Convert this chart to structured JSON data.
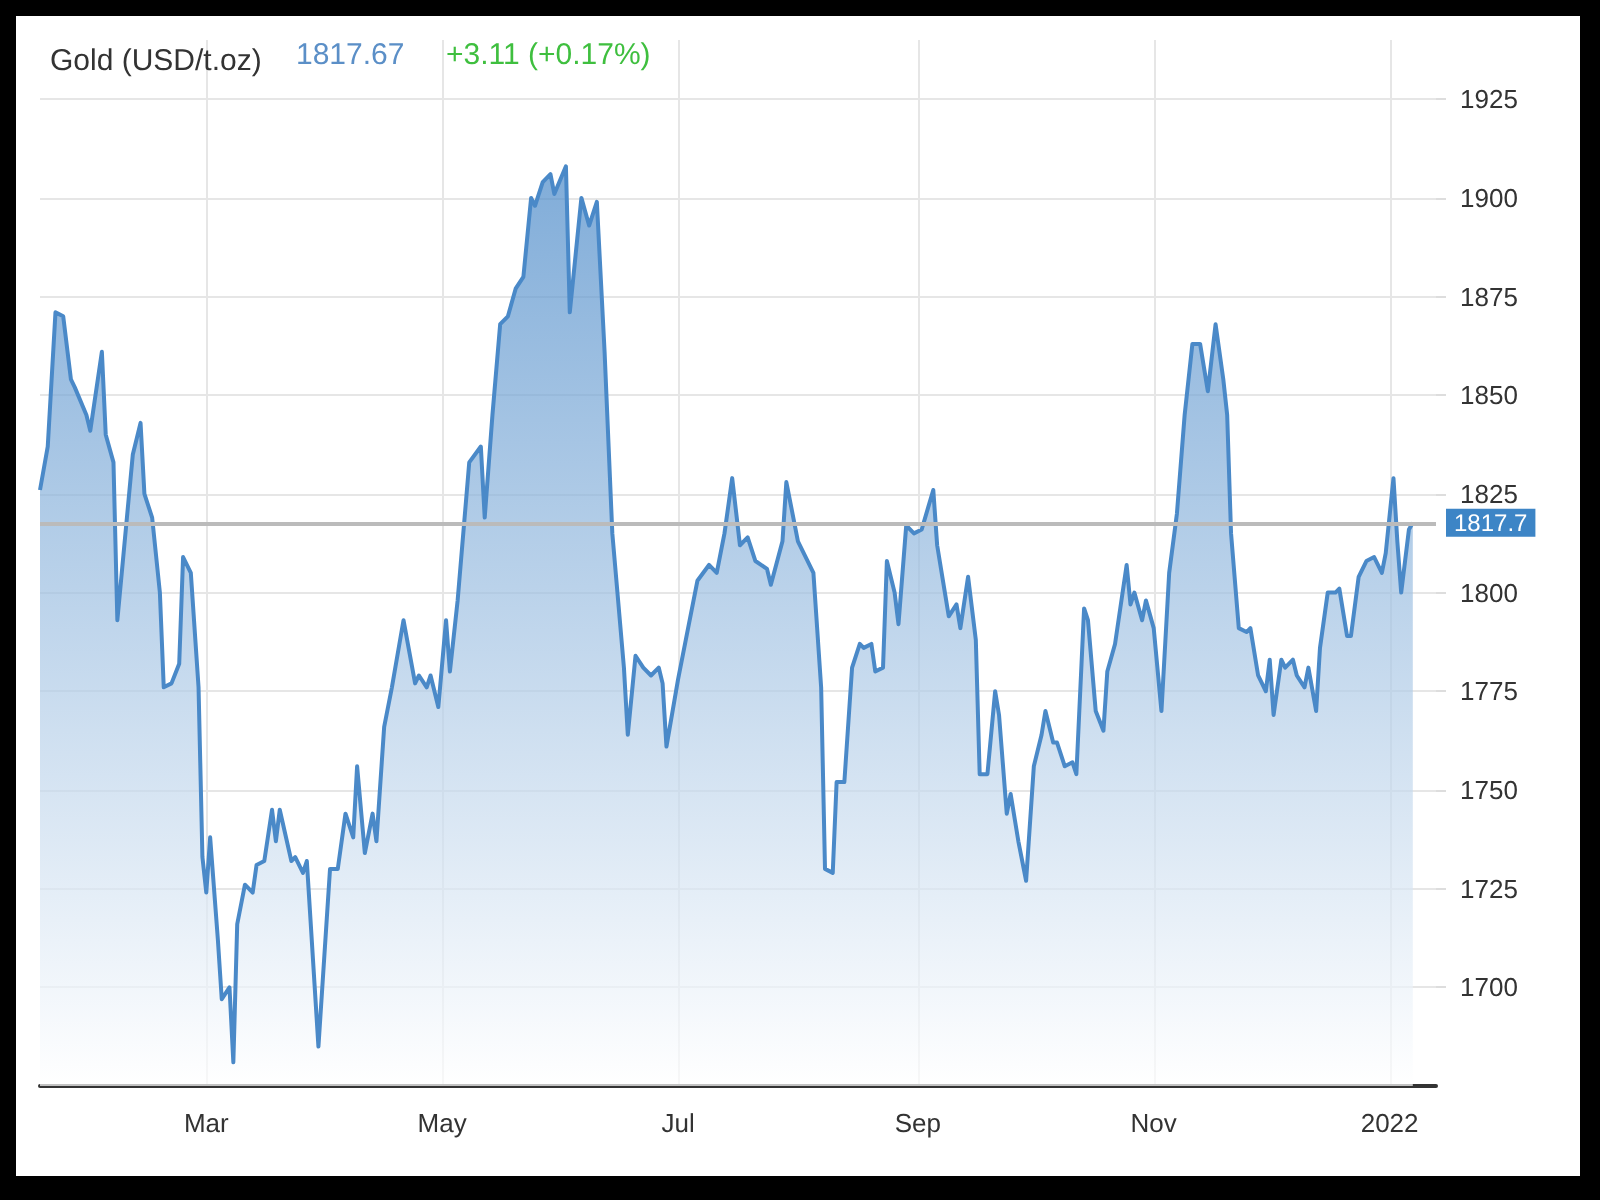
{
  "chart_data": {
    "type": "area",
    "title": "Gold (USD/t.oz)",
    "annotations": [
      "1817.67",
      "+3.11 (+0.17%)"
    ],
    "x": [
      "2021-01-17",
      "2021-01-19",
      "2021-01-21",
      "2021-01-23",
      "2021-01-25",
      "2021-01-26",
      "2021-01-29",
      "2021-01-30",
      "2021-02-02",
      "2021-02-03",
      "2021-02-05",
      "2021-02-06",
      "2021-02-10",
      "2021-02-12",
      "2021-02-13",
      "2021-02-15",
      "2021-02-17",
      "2021-02-18",
      "2021-02-20",
      "2021-02-22",
      "2021-02-23",
      "2021-02-25",
      "2021-02-27",
      "2021-02-28",
      "2021-03-01",
      "2021-03-02",
      "2021-03-04",
      "2021-03-05",
      "2021-03-07",
      "2021-03-08",
      "2021-03-09",
      "2021-03-11",
      "2021-03-13",
      "2021-03-14",
      "2021-03-16",
      "2021-03-18",
      "2021-03-19",
      "2021-03-20",
      "2021-03-23",
      "2021-03-24",
      "2021-03-26",
      "2021-03-27",
      "2021-03-30",
      "2021-04-02",
      "2021-04-04",
      "2021-04-06",
      "2021-04-08",
      "2021-04-09",
      "2021-04-11",
      "2021-04-13",
      "2021-04-14",
      "2021-04-16",
      "2021-04-18",
      "2021-04-21",
      "2021-04-24",
      "2021-04-25",
      "2021-04-27",
      "2021-04-28",
      "2021-04-30",
      "2021-05-02",
      "2021-05-03",
      "2021-05-05",
      "2021-05-08",
      "2021-05-11",
      "2021-05-12",
      "2021-05-14",
      "2021-05-16",
      "2021-05-18",
      "2021-05-20",
      "2021-05-22",
      "2021-05-24",
      "2021-05-25",
      "2021-05-27",
      "2021-05-29",
      "2021-05-30",
      "2021-06-02",
      "2021-06-03",
      "2021-06-06",
      "2021-06-08",
      "2021-06-10",
      "2021-06-12",
      "2021-06-14",
      "2021-06-17",
      "2021-06-18",
      "2021-06-20",
      "2021-06-22",
      "2021-06-24",
      "2021-06-26",
      "2021-06-27",
      "2021-06-28",
      "2021-07-01",
      "2021-07-03",
      "2021-07-06",
      "2021-07-09",
      "2021-07-11",
      "2021-07-13",
      "2021-07-15",
      "2021-07-17",
      "2021-07-19",
      "2021-07-21",
      "2021-07-24",
      "2021-07-25",
      "2021-07-28",
      "2021-07-29",
      "2021-08-01",
      "2021-08-03",
      "2021-08-05",
      "2021-08-07",
      "2021-08-08",
      "2021-08-10",
      "2021-08-11",
      "2021-08-13",
      "2021-08-15",
      "2021-08-17",
      "2021-08-18",
      "2021-08-20",
      "2021-08-21",
      "2021-08-23",
      "2021-08-24",
      "2021-08-26",
      "2021-08-27",
      "2021-08-29",
      "2021-08-31",
      "2021-09-02",
      "2021-09-05",
      "2021-09-06",
      "2021-09-08",
      "2021-09-09",
      "2021-09-11",
      "2021-09-12",
      "2021-09-14",
      "2021-09-16",
      "2021-09-17",
      "2021-09-19",
      "2021-09-21",
      "2021-09-22",
      "2021-09-24",
      "2021-09-25",
      "2021-09-27",
      "2021-09-29",
      "2021-10-01",
      "2021-10-03",
      "2021-10-04",
      "2021-10-06",
      "2021-10-07",
      "2021-10-09",
      "2021-10-11",
      "2021-10-12",
      "2021-10-14",
      "2021-10-15",
      "2021-10-17",
      "2021-10-19",
      "2021-10-20",
      "2021-10-22",
      "2021-10-25",
      "2021-10-26",
      "2021-10-27",
      "2021-10-29",
      "2021-10-30",
      "2021-11-01",
      "2021-11-03",
      "2021-11-05",
      "2021-11-07",
      "2021-11-09",
      "2021-11-11",
      "2021-11-13",
      "2021-11-15",
      "2021-11-17",
      "2021-11-19",
      "2021-11-20",
      "2021-11-21",
      "2021-11-23",
      "2021-11-25",
      "2021-11-26",
      "2021-11-28",
      "2021-11-30",
      "2021-12-01",
      "2021-12-02",
      "2021-12-04",
      "2021-12-05",
      "2021-12-07",
      "2021-12-08",
      "2021-12-10",
      "2021-12-11",
      "2021-12-13",
      "2021-12-14",
      "2021-12-16",
      "2021-12-18",
      "2021-12-19",
      "2021-12-21",
      "2021-12-22",
      "2021-12-24",
      "2021-12-26",
      "2021-12-28",
      "2021-12-30",
      "2021-12-31",
      "2022-01-02",
      "2022-01-03",
      "2022-01-04",
      "2022-01-06",
      "2022-01-07"
    ],
    "series": [
      {
        "color": "#4a89c8",
        "values": [
          1826,
          1837,
          1871,
          1870,
          1854,
          1852,
          1845,
          1841,
          1861,
          1840,
          1833,
          1793,
          1835,
          1843,
          1825,
          1819,
          1800,
          1776,
          1777,
          1782,
          1809,
          1805,
          1776,
          1733,
          1724,
          1738,
          1712,
          1697,
          1700,
          1681,
          1716,
          1726,
          1724,
          1731,
          1732,
          1745,
          1737,
          1745,
          1732,
          1733,
          1729,
          1732,
          1685,
          1730,
          1730,
          1744,
          1738,
          1756,
          1734,
          1744,
          1737,
          1766,
          1776,
          1793,
          1777,
          1779,
          1776,
          1779,
          1771,
          1793,
          1780,
          1798,
          1833,
          1837,
          1819,
          1845,
          1868,
          1870,
          1877,
          1880,
          1900,
          1898,
          1904,
          1906,
          1901,
          1908,
          1871,
          1900,
          1893,
          1899,
          1861,
          1815,
          1781,
          1764,
          1784,
          1781,
          1779,
          1781,
          1777,
          1761,
          1778,
          1788,
          1803,
          1807,
          1805,
          1815,
          1829,
          1812,
          1814,
          1808,
          1806,
          1802,
          1813,
          1828,
          1813,
          1809,
          1805,
          1776,
          1730,
          1729,
          1752,
          1752,
          1781,
          1787,
          1786,
          1787,
          1780,
          1781,
          1808,
          1800,
          1792,
          1817,
          1815,
          1816,
          1826,
          1812,
          1800,
          1794,
          1797,
          1791,
          1804,
          1788,
          1754,
          1754,
          1775,
          1769,
          1744,
          1749,
          1737,
          1727,
          1756,
          1764,
          1770,
          1762,
          1762,
          1756,
          1757,
          1754,
          1796,
          1793,
          1770,
          1765,
          1780,
          1787,
          1807,
          1797,
          1800,
          1793,
          1798,
          1791,
          1770,
          1805,
          1820,
          1845,
          1863,
          1863,
          1851,
          1868,
          1854,
          1845,
          1815,
          1791,
          1790,
          1791,
          1779,
          1775,
          1783,
          1769,
          1783,
          1781,
          1783,
          1779,
          1776,
          1781,
          1770,
          1786,
          1800,
          1800,
          1801,
          1789,
          1789,
          1804,
          1808,
          1809,
          1805,
          1810,
          1829,
          1813,
          1800,
          1816,
          1817.7
        ]
      }
    ],
    "xlim": [
      "2021-01-17",
      "2022-01-13"
    ],
    "xticks": [
      {
        "value": "2021-03-01",
        "label": "Mar"
      },
      {
        "value": "2021-05-01",
        "label": "May"
      },
      {
        "value": "2021-07-01",
        "label": "Jul"
      },
      {
        "value": "2021-09-01",
        "label": "Sep"
      },
      {
        "value": "2021-11-01",
        "label": "Nov"
      },
      {
        "value": "2022-01-01",
        "label": "2022"
      }
    ],
    "ylim": [
      1675,
      1940
    ],
    "yticks": [
      1700,
      1725,
      1750,
      1775,
      1800,
      1825,
      1850,
      1875,
      1900,
      1925
    ],
    "ref_lines": [
      {
        "axis": "y",
        "value": 1817.7,
        "label": "1817.7",
        "color": "#bbbbbb"
      }
    ],
    "grid": true,
    "marker": "none",
    "line_style": "solid"
  }
}
